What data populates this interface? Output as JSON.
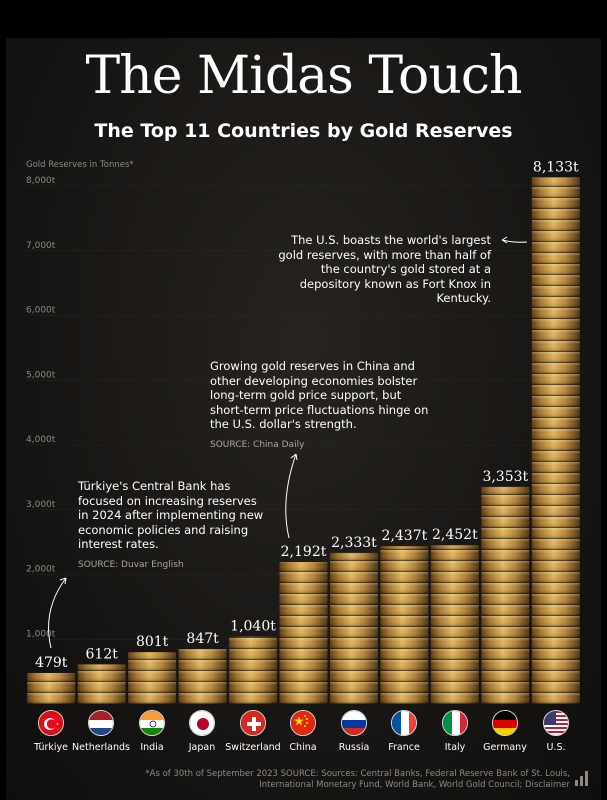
{
  "header": {
    "title": "The Midas Touch",
    "subtitle": "The Top 11 Countries by Gold Reserves"
  },
  "chart_data": {
    "type": "bar",
    "title": "The Midas Touch",
    "subtitle": "The Top 11 Countries by Gold Reserves",
    "ylabel": "Gold Reserves in Tonnes*",
    "xlabel": "",
    "ylim": [
      0,
      8000
    ],
    "yticks": [
      1000,
      2000,
      3000,
      4000,
      5000,
      6000,
      7000,
      8000
    ],
    "ytick_labels": [
      "1,000t",
      "2,000t",
      "3,000t",
      "4,000t",
      "5,000t",
      "6,000t",
      "7,000t",
      "8,000t"
    ],
    "grid": true,
    "categories": [
      "Türkiye",
      "Netherlands",
      "India",
      "Japan",
      "Switzerland",
      "China",
      "Russia",
      "France",
      "Italy",
      "Germany",
      "U.S."
    ],
    "values": [
      479,
      612,
      801,
      847,
      1040,
      2192,
      2333,
      2437,
      2452,
      3353,
      8133
    ],
    "value_labels": [
      "479t",
      "612t",
      "801t",
      "847t",
      "1,040t",
      "2,192t",
      "2,333t",
      "2,437t",
      "2,452t",
      "3,353t",
      "8,133t"
    ],
    "annotations": [
      {
        "target": "U.S.",
        "text": "The U.S. boasts the world's largest gold reserves, with more than half of the country's gold stored at a depository known as Fort Knox in Kentucky."
      },
      {
        "target": "China",
        "text": "Growing gold reserves in China and other developing economies bolster long-term gold price support, but short-term price fluctuations hinge on the U.S. dollar's strength.",
        "source": "SOURCE: China Daily"
      },
      {
        "target": "Türkiye",
        "text": "Türkiye's Central Bank has focused on increasing reserves in 2024 after implementing new economic policies and raising interest rates.",
        "source": "SOURCE: Duvar English"
      }
    ]
  },
  "footnote": "*As of 30th of September 2023 SOURCE: Sources: Central Banks, Federal Reserve Bank of St. Louis, International Monetary Fund, World Bank, World Gold Council; Disclaimer",
  "colors": {
    "background": "#1a1816",
    "gold_light": "#e2b75e",
    "gold_mid": "#a7772e",
    "gold_dark": "#4f3510",
    "text": "#ffffff",
    "muted": "#8d8a85"
  },
  "icons": {
    "flags": [
      "turkey-flag-icon",
      "netherlands-flag-icon",
      "india-flag-icon",
      "japan-flag-icon",
      "switzerland-flag-icon",
      "china-flag-icon",
      "russia-flag-icon",
      "france-flag-icon",
      "italy-flag-icon",
      "germany-flag-icon",
      "usa-flag-icon"
    ],
    "logo": "bar-chart-logo-icon"
  }
}
